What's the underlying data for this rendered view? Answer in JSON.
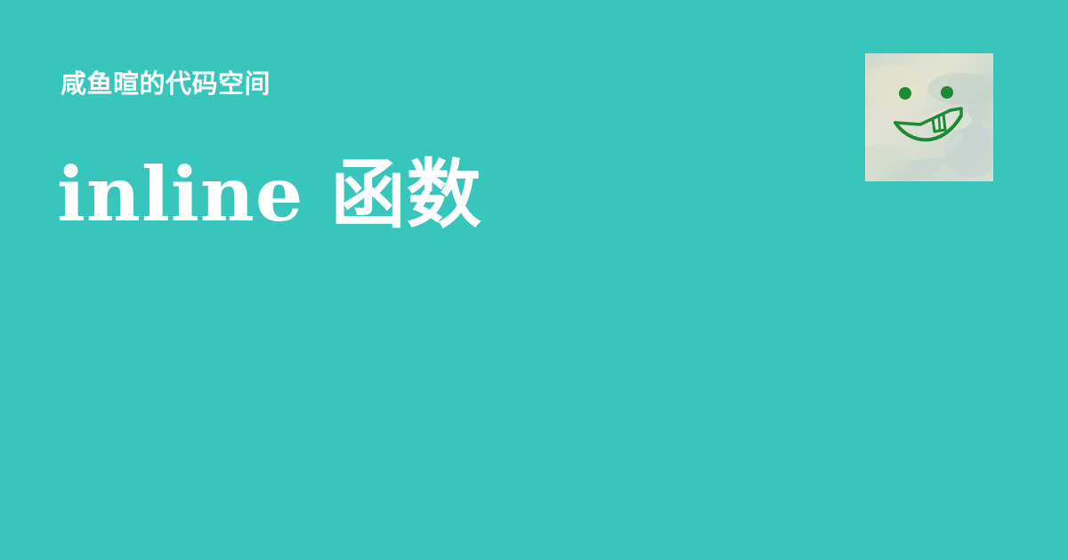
{
  "header": {
    "site_name": "咸鱼暄的代码空间"
  },
  "main": {
    "title": "inline 函数"
  },
  "avatar": {
    "icon": "smiley-face-avatar-icon"
  },
  "colors": {
    "background": "#38c5bb",
    "text": "#ffffff",
    "avatar_face": "#1f8a36"
  }
}
